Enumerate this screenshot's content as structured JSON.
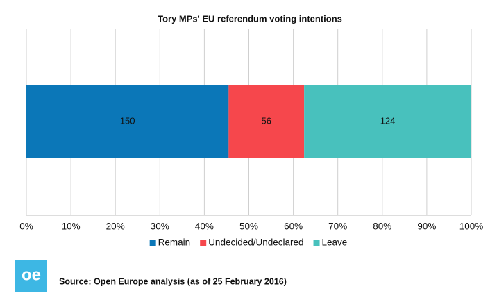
{
  "chart_data": {
    "type": "bar",
    "orientation": "horizontal",
    "stacked": "percent",
    "title": "Tory MPs' EU referendum voting intentions",
    "series": [
      {
        "name": "Remain",
        "color": "#0b77b8",
        "values": [
          150
        ]
      },
      {
        "name": "Undecided/Undeclared",
        "color": "#f6474c",
        "values": [
          56
        ]
      },
      {
        "name": "Leave",
        "color": "#48c1bd",
        "values": [
          124
        ]
      }
    ],
    "xlim": [
      0,
      100
    ],
    "xticks": [
      {
        "value": 0,
        "label": "0%"
      },
      {
        "value": 10,
        "label": "10%"
      },
      {
        "value": 20,
        "label": "20%"
      },
      {
        "value": 30,
        "label": "30%"
      },
      {
        "value": 40,
        "label": "40%"
      },
      {
        "value": 50,
        "label": "50%"
      },
      {
        "value": 60,
        "label": "60%"
      },
      {
        "value": 70,
        "label": "70%"
      },
      {
        "value": 80,
        "label": "80%"
      },
      {
        "value": 90,
        "label": "90%"
      },
      {
        "value": 100,
        "label": "100%"
      }
    ],
    "grid": true,
    "legend": "bottom"
  },
  "logo": "oe",
  "source": "Source: Open Europe analysis (as of 25 February 2016)"
}
